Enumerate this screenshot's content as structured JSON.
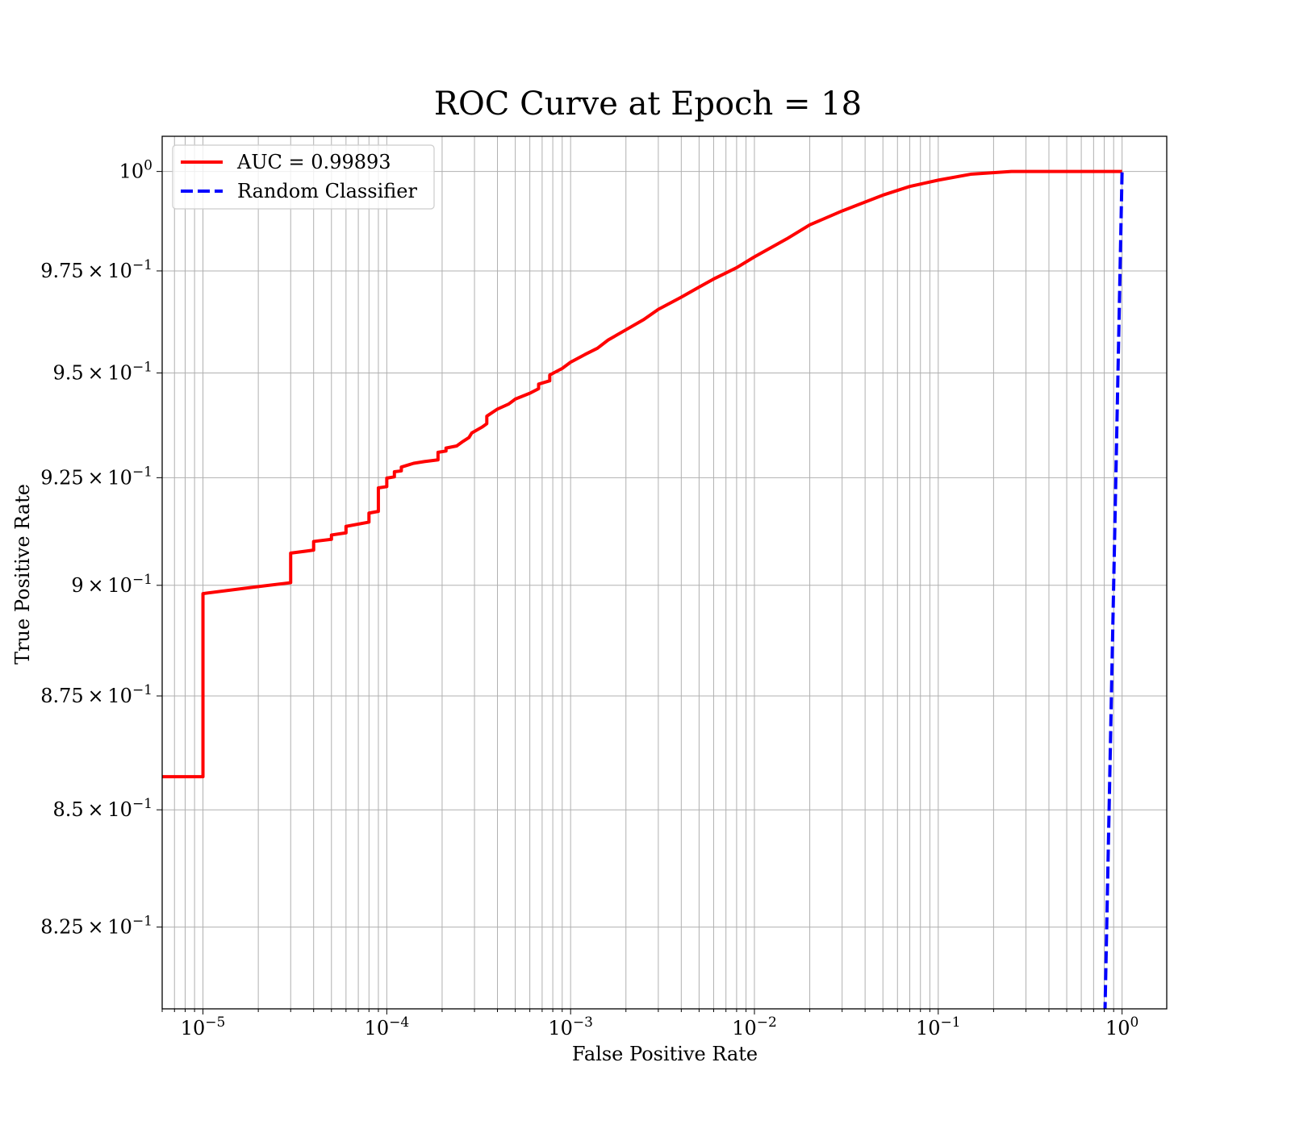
{
  "chart_data": {
    "type": "line",
    "title": "ROC Curve at Epoch = 18",
    "xlabel": "False Positive Rate",
    "ylabel": "True Positive Rate",
    "xscale": "log",
    "yscale": "log",
    "xlim": [
      6e-06,
      1.75
    ],
    "ylim": [
      0.808,
      1.009
    ],
    "grid": true,
    "legend_placement": "upper-left",
    "x_ticks": [
      {
        "value": 1e-05,
        "base": "10",
        "exp": "−5"
      },
      {
        "value": 0.0001,
        "base": "10",
        "exp": "−4"
      },
      {
        "value": 0.001,
        "base": "10",
        "exp": "−3"
      },
      {
        "value": 0.01,
        "base": "10",
        "exp": "−2"
      },
      {
        "value": 0.1,
        "base": "10",
        "exp": "−1"
      },
      {
        "value": 1,
        "base": "10",
        "exp": "0"
      }
    ],
    "y_ticks": [
      {
        "value": 0.825,
        "mant": "8.25",
        "base": "10",
        "exp": "−1"
      },
      {
        "value": 0.85,
        "mant": "8.5",
        "base": "10",
        "exp": "−1"
      },
      {
        "value": 0.875,
        "mant": "8.75",
        "base": "10",
        "exp": "−1"
      },
      {
        "value": 0.9,
        "mant": "9",
        "base": "10",
        "exp": "−1"
      },
      {
        "value": 0.925,
        "mant": "9.25",
        "base": "10",
        "exp": "−1"
      },
      {
        "value": 0.95,
        "mant": "9.5",
        "base": "10",
        "exp": "−1"
      },
      {
        "value": 0.975,
        "mant": "9.75",
        "base": "10",
        "exp": "−1"
      },
      {
        "value": 1.0,
        "mant": "",
        "base": "10",
        "exp": "0"
      }
    ],
    "series": [
      {
        "name": "AUC = 0.99893",
        "color": "#ff0000",
        "style": "solid",
        "points": [
          [
            6e-06,
            0.8572
          ],
          [
            1e-05,
            0.8572
          ],
          [
            1e-05,
            0.8981
          ],
          [
            2e-05,
            0.8997
          ],
          [
            3e-05,
            0.9006
          ],
          [
            3e-05,
            0.9074
          ],
          [
            4e-05,
            0.9081
          ],
          [
            4e-05,
            0.9101
          ],
          [
            5e-05,
            0.9106
          ],
          [
            5e-05,
            0.9116
          ],
          [
            6e-05,
            0.9121
          ],
          [
            6e-05,
            0.9136
          ],
          [
            8e-05,
            0.9146
          ],
          [
            8e-05,
            0.9167
          ],
          [
            9e-05,
            0.9171
          ],
          [
            9e-05,
            0.9226
          ],
          [
            0.0001,
            0.9229
          ],
          [
            0.0001,
            0.9249
          ],
          [
            0.00011,
            0.9252
          ],
          [
            0.00011,
            0.9264
          ],
          [
            0.00012,
            0.9266
          ],
          [
            0.00012,
            0.9275
          ],
          [
            0.00014,
            0.9284
          ],
          [
            0.00016,
            0.9288
          ],
          [
            0.00019,
            0.9292
          ],
          [
            0.00019,
            0.931
          ],
          [
            0.00021,
            0.9313
          ],
          [
            0.00021,
            0.932
          ],
          [
            0.00024,
            0.9325
          ],
          [
            0.00026,
            0.9336
          ],
          [
            0.00028,
            0.9345
          ],
          [
            0.00029,
            0.9356
          ],
          [
            0.00033,
            0.937
          ],
          [
            0.00035,
            0.9378
          ],
          [
            0.00035,
            0.9396
          ],
          [
            0.0004,
            0.9413
          ],
          [
            0.00046,
            0.9425
          ],
          [
            0.0005,
            0.9437
          ],
          [
            0.0006,
            0.9451
          ],
          [
            0.00067,
            0.9462
          ],
          [
            0.00067,
            0.9473
          ],
          [
            0.00077,
            0.9481
          ],
          [
            0.00077,
            0.9495
          ],
          [
            0.0009,
            0.9511
          ],
          [
            0.001,
            0.9526
          ],
          [
            0.0012,
            0.9545
          ],
          [
            0.0014,
            0.956
          ],
          [
            0.0016,
            0.958
          ],
          [
            0.002,
            0.9605
          ],
          [
            0.0025,
            0.963
          ],
          [
            0.003,
            0.9655
          ],
          [
            0.004,
            0.9685
          ],
          [
            0.005,
            0.971
          ],
          [
            0.006,
            0.973
          ],
          [
            0.008,
            0.9758
          ],
          [
            0.01,
            0.9785
          ],
          [
            0.015,
            0.983
          ],
          [
            0.02,
            0.9865
          ],
          [
            0.03,
            0.99
          ],
          [
            0.05,
            0.994
          ],
          [
            0.07,
            0.9962
          ],
          [
            0.1,
            0.9978
          ],
          [
            0.15,
            0.9993
          ],
          [
            0.25,
            1.0
          ],
          [
            1.0,
            1.0
          ]
        ]
      },
      {
        "name": "Random Classifier",
        "color": "#0000ff",
        "style": "dashed",
        "points": [
          [
            0.8,
            0.8
          ],
          [
            0.85,
            0.85
          ],
          [
            0.9,
            0.9
          ],
          [
            0.95,
            0.95
          ],
          [
            1.0,
            1.0
          ]
        ]
      }
    ]
  }
}
